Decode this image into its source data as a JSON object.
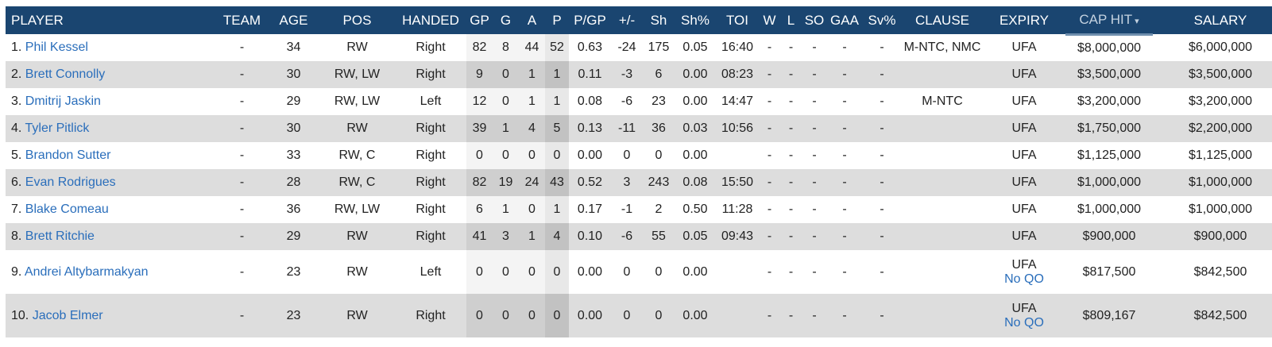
{
  "header": {
    "player": "PLAYER",
    "team": "TEAM",
    "age": "AGE",
    "pos": "POS",
    "handed": "HANDED",
    "gp": "GP",
    "g": "G",
    "a": "A",
    "p": "P",
    "pgp": "P/GP",
    "pm": "+/-",
    "sh": "Sh",
    "shp": "Sh%",
    "toi": "TOI",
    "w": "W",
    "l": "L",
    "so": "SO",
    "gaa": "GAA",
    "svp": "Sv%",
    "clause": "CLAUSE",
    "expiry": "EXPIRY",
    "caphit": "CAP HIT",
    "sort_icon": "▾",
    "salary": "SALARY"
  },
  "rows": [
    {
      "rank": "1.",
      "name": "Phil Kessel",
      "team": "-",
      "age": "34",
      "pos": "RW",
      "handed": "Right",
      "gp": "82",
      "g": "8",
      "a": "44",
      "p": "52",
      "pgp": "0.63",
      "pm": "-24",
      "sh": "175",
      "shp": "0.05",
      "toi": "16:40",
      "w": "-",
      "l": "-",
      "so": "-",
      "gaa": "-",
      "svp": "-",
      "clause": "M-NTC, NMC",
      "expiry": "UFA",
      "note": "",
      "caphit": "$8,000,000",
      "salary": "$6,000,000"
    },
    {
      "rank": "2.",
      "name": "Brett Connolly",
      "team": "-",
      "age": "30",
      "pos": "RW, LW",
      "handed": "Right",
      "gp": "9",
      "g": "0",
      "a": "1",
      "p": "1",
      "pgp": "0.11",
      "pm": "-3",
      "sh": "6",
      "shp": "0.00",
      "toi": "08:23",
      "w": "-",
      "l": "-",
      "so": "-",
      "gaa": "-",
      "svp": "-",
      "clause": "",
      "expiry": "UFA",
      "note": "",
      "caphit": "$3,500,000",
      "salary": "$3,500,000"
    },
    {
      "rank": "3.",
      "name": "Dmitrij Jaskin",
      "team": "-",
      "age": "29",
      "pos": "RW, LW",
      "handed": "Left",
      "gp": "12",
      "g": "0",
      "a": "1",
      "p": "1",
      "pgp": "0.08",
      "pm": "-6",
      "sh": "23",
      "shp": "0.00",
      "toi": "14:47",
      "w": "-",
      "l": "-",
      "so": "-",
      "gaa": "-",
      "svp": "-",
      "clause": "M-NTC",
      "expiry": "UFA",
      "note": "",
      "caphit": "$3,200,000",
      "salary": "$3,200,000"
    },
    {
      "rank": "4.",
      "name": "Tyler Pitlick",
      "team": "-",
      "age": "30",
      "pos": "RW",
      "handed": "Right",
      "gp": "39",
      "g": "1",
      "a": "4",
      "p": "5",
      "pgp": "0.13",
      "pm": "-11",
      "sh": "36",
      "shp": "0.03",
      "toi": "10:56",
      "w": "-",
      "l": "-",
      "so": "-",
      "gaa": "-",
      "svp": "-",
      "clause": "",
      "expiry": "UFA",
      "note": "",
      "caphit": "$1,750,000",
      "salary": "$2,200,000"
    },
    {
      "rank": "5.",
      "name": "Brandon Sutter",
      "team": "-",
      "age": "33",
      "pos": "RW, C",
      "handed": "Right",
      "gp": "0",
      "g": "0",
      "a": "0",
      "p": "0",
      "pgp": "0.00",
      "pm": "0",
      "sh": "0",
      "shp": "0.00",
      "toi": "",
      "w": "-",
      "l": "-",
      "so": "-",
      "gaa": "-",
      "svp": "-",
      "clause": "",
      "expiry": "UFA",
      "note": "",
      "caphit": "$1,125,000",
      "salary": "$1,125,000"
    },
    {
      "rank": "6.",
      "name": "Evan Rodrigues",
      "team": "-",
      "age": "28",
      "pos": "RW, C",
      "handed": "Right",
      "gp": "82",
      "g": "19",
      "a": "24",
      "p": "43",
      "pgp": "0.52",
      "pm": "3",
      "sh": "243",
      "shp": "0.08",
      "toi": "15:50",
      "w": "-",
      "l": "-",
      "so": "-",
      "gaa": "-",
      "svp": "-",
      "clause": "",
      "expiry": "UFA",
      "note": "",
      "caphit": "$1,000,000",
      "salary": "$1,000,000"
    },
    {
      "rank": "7.",
      "name": "Blake Comeau",
      "team": "-",
      "age": "36",
      "pos": "RW, LW",
      "handed": "Right",
      "gp": "6",
      "g": "1",
      "a": "0",
      "p": "1",
      "pgp": "0.17",
      "pm": "-1",
      "sh": "2",
      "shp": "0.50",
      "toi": "11:28",
      "w": "-",
      "l": "-",
      "so": "-",
      "gaa": "-",
      "svp": "-",
      "clause": "",
      "expiry": "UFA",
      "note": "",
      "caphit": "$1,000,000",
      "salary": "$1,000,000"
    },
    {
      "rank": "8.",
      "name": "Brett Ritchie",
      "team": "-",
      "age": "29",
      "pos": "RW",
      "handed": "Right",
      "gp": "41",
      "g": "3",
      "a": "1",
      "p": "4",
      "pgp": "0.10",
      "pm": "-6",
      "sh": "55",
      "shp": "0.05",
      "toi": "09:43",
      "w": "-",
      "l": "-",
      "so": "-",
      "gaa": "-",
      "svp": "-",
      "clause": "",
      "expiry": "UFA",
      "note": "",
      "caphit": "$900,000",
      "salary": "$900,000"
    },
    {
      "rank": "9.",
      "name": "Andrei Altybarmakyan",
      "team": "-",
      "age": "23",
      "pos": "RW",
      "handed": "Left",
      "gp": "0",
      "g": "0",
      "a": "0",
      "p": "0",
      "pgp": "0.00",
      "pm": "0",
      "sh": "0",
      "shp": "0.00",
      "toi": "",
      "w": "-",
      "l": "-",
      "so": "-",
      "gaa": "-",
      "svp": "-",
      "clause": "",
      "expiry": "UFA",
      "note": "No QO",
      "caphit": "$817,500",
      "salary": "$842,500"
    },
    {
      "rank": "10.",
      "name": "Jacob Elmer",
      "team": "-",
      "age": "23",
      "pos": "RW",
      "handed": "Right",
      "gp": "0",
      "g": "0",
      "a": "0",
      "p": "0",
      "pgp": "0.00",
      "pm": "0",
      "sh": "0",
      "shp": "0.00",
      "toi": "",
      "w": "-",
      "l": "-",
      "so": "-",
      "gaa": "-",
      "svp": "-",
      "clause": "",
      "expiry": "UFA",
      "note": "No QO",
      "caphit": "$809,167",
      "salary": "$842,500"
    }
  ],
  "colors": {
    "header_bg": "#1a4570",
    "link": "#2a6ebb",
    "row_alt": "#dddddd"
  }
}
